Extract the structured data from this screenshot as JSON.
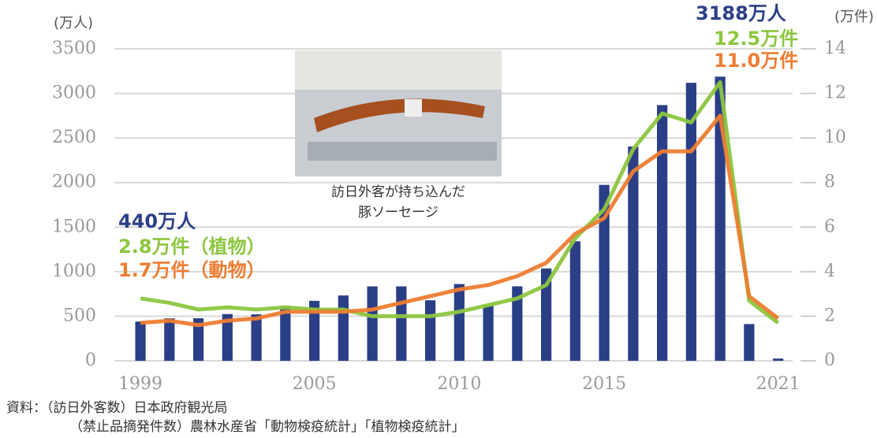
{
  "chart_data": {
    "type": "bar_line",
    "y_unit": "(万人)",
    "y2_unit": "(万件)",
    "x": [
      1999,
      2000,
      2001,
      2002,
      2003,
      2004,
      2005,
      2006,
      2007,
      2008,
      2009,
      2010,
      2011,
      2012,
      2013,
      2014,
      2015,
      2016,
      2017,
      2018,
      2019,
      2020,
      2021
    ],
    "xlim": [
      1998.1,
      2021.5
    ],
    "xticks": [
      1999,
      2005,
      2010,
      2015,
      2021
    ],
    "ylim": [
      0,
      3500
    ],
    "yticks": [
      0,
      500,
      1000,
      1500,
      2000,
      2500,
      3000,
      3500
    ],
    "y2lim": [
      0,
      14
    ],
    "y2ticks": [
      0,
      2,
      4,
      6,
      8,
      10,
      12,
      14
    ],
    "grid": true,
    "series": [
      {
        "type": "bar",
        "color": "#2b3f87",
        "values": [
          440,
          476,
          477,
          524,
          521,
          614,
          673,
          733,
          835,
          835,
          679,
          861,
          622,
          836,
          1036,
          1341,
          1974,
          2404,
          2869,
          3119,
          3188,
          412,
          25
        ]
      },
      {
        "type": "line",
        "axis": "y2",
        "color": "#8cc63f",
        "values": [
          2.8,
          2.6,
          2.3,
          2.4,
          2.3,
          2.4,
          2.3,
          2.3,
          2.0,
          2.0,
          2.0,
          2.2,
          2.5,
          2.8,
          3.4,
          5.5,
          6.8,
          9.5,
          11.1,
          10.7,
          12.5,
          2.7,
          1.7
        ]
      },
      {
        "type": "line",
        "axis": "y2",
        "color": "#ed7d31",
        "values": [
          1.7,
          1.8,
          1.6,
          1.8,
          1.9,
          2.2,
          2.2,
          2.2,
          2.3,
          2.6,
          2.9,
          3.2,
          3.4,
          3.8,
          4.4,
          5.7,
          6.4,
          8.5,
          9.4,
          9.4,
          11.0,
          2.9,
          1.9
        ]
      }
    ],
    "annotations": [
      "3188万人",
      "12.5万件",
      "11.0万件",
      "440万人",
      "2.8万件（植物）",
      "1.7万件（動物）"
    ],
    "photo_caption": [
      "訪日外客が持ち込んだ",
      "豚ソーセージ"
    ],
    "source": [
      "資料：（訪日外客数）日本政府観光局",
      "（禁止品摘発件数）農林水産省「動物検疫統計」「植物検疫統計」"
    ]
  }
}
